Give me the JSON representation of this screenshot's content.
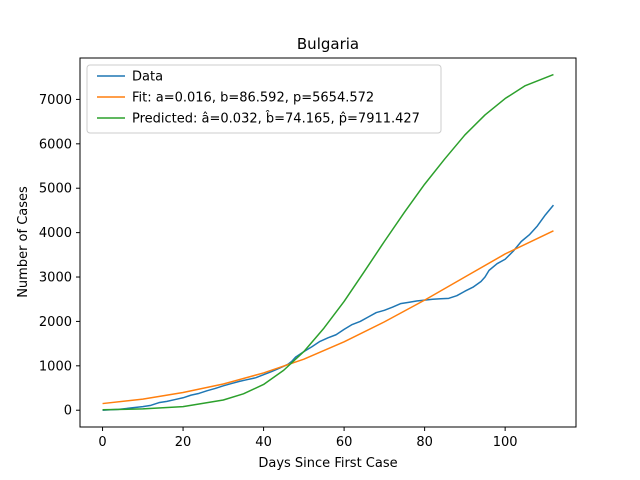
{
  "chart_data": {
    "type": "line",
    "title": "Bulgaria",
    "xlabel": "Days Since First Case",
    "ylabel": "Number of Cases",
    "xlim": [
      -5.6,
      117.6
    ],
    "ylim": [
      -378,
      7933
    ],
    "xticks": [
      0,
      20,
      40,
      60,
      80,
      100
    ],
    "yticks": [
      0,
      1000,
      2000,
      3000,
      4000,
      5000,
      6000,
      7000
    ],
    "xtick_labels": [
      "0",
      "20",
      "40",
      "60",
      "80",
      "100"
    ],
    "ytick_labels": [
      "0",
      "1000",
      "2000",
      "3000",
      "4000",
      "5000",
      "6000",
      "7000"
    ],
    "grid": false,
    "legend_position": "top-left",
    "series": [
      {
        "name": "Data",
        "color": "#1f77b4",
        "x": [
          0,
          2,
          4,
          6,
          8,
          10,
          12,
          14,
          16,
          18,
          20,
          22,
          24,
          26,
          28,
          30,
          32,
          34,
          36,
          38,
          40,
          42,
          44,
          46,
          47,
          48,
          50,
          52,
          54,
          56,
          58,
          60,
          62,
          64,
          66,
          68,
          70,
          72,
          74,
          76,
          78,
          80,
          82,
          84,
          86,
          88,
          90,
          92,
          94,
          95,
          96,
          98,
          100,
          102,
          104,
          106,
          108,
          110,
          112
        ],
        "y": [
          0,
          10,
          20,
          40,
          60,
          80,
          110,
          170,
          200,
          240,
          280,
          340,
          380,
          440,
          490,
          550,
          600,
          650,
          690,
          730,
          800,
          870,
          950,
          1030,
          1100,
          1200,
          1320,
          1430,
          1550,
          1630,
          1700,
          1820,
          1930,
          2000,
          2100,
          2200,
          2250,
          2320,
          2400,
          2430,
          2460,
          2480,
          2500,
          2510,
          2520,
          2580,
          2680,
          2770,
          2900,
          3000,
          3150,
          3300,
          3400,
          3580,
          3800,
          3950,
          4150,
          4400,
          4620
        ]
      },
      {
        "name": "Fit: a=0.016, b=86.592, p=5654.572",
        "color": "#ff7f0e",
        "x": [
          0,
          10,
          20,
          30,
          40,
          50,
          60,
          70,
          80,
          90,
          100,
          112
        ],
        "y": [
          150,
          250,
          400,
          590,
          840,
          1150,
          1540,
          1990,
          2480,
          3000,
          3520,
          4040
        ]
      },
      {
        "name": "Predicted: â=0.032, b̂=74.165, p̂=7911.427",
        "color": "#2ca02c",
        "x": [
          0,
          10,
          20,
          30,
          35,
          40,
          45,
          50,
          55,
          60,
          65,
          70,
          75,
          80,
          85,
          90,
          95,
          100,
          105,
          112
        ],
        "y": [
          10,
          30,
          80,
          230,
          370,
          580,
          900,
          1320,
          1850,
          2450,
          3120,
          3800,
          4460,
          5090,
          5660,
          6200,
          6650,
          7020,
          7310,
          7560
        ]
      }
    ]
  }
}
